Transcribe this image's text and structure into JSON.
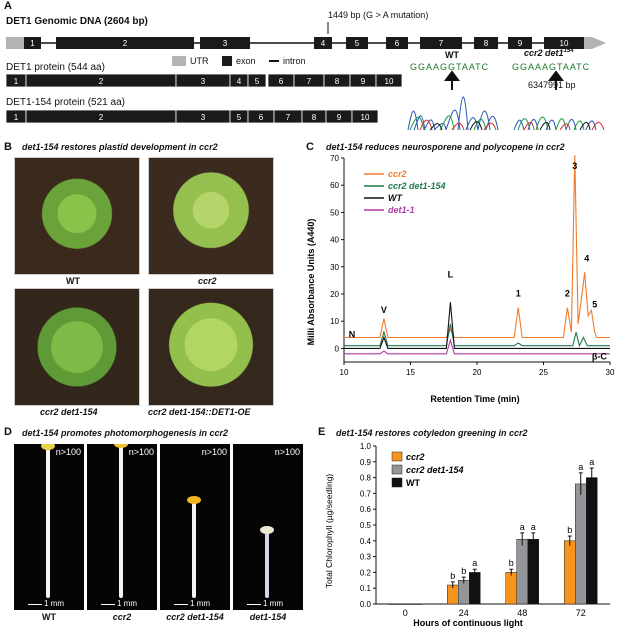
{
  "panels": {
    "a": {
      "letter": "A",
      "genomic_title": "DET1 Genomic DNA (2604 bp)",
      "mutation_label": "1449 bp (G > A mutation)",
      "legend": {
        "utr": "UTR",
        "exon": "exon",
        "intron": "intron"
      },
      "genomic_exons": [
        "1",
        "2",
        "3",
        "4",
        "5",
        "6",
        "7",
        "8",
        "9",
        "10"
      ],
      "protein_title": "DET1 protein (544 aa)",
      "protein_exons": [
        "1",
        "2",
        "3",
        "4",
        "5",
        "6",
        "7",
        "8",
        "9",
        "10"
      ],
      "mutant_title": "DET1-154 protein (521 aa)",
      "mutant_exons": [
        "1",
        "2",
        "3",
        "5",
        "6",
        "7",
        "8",
        "9",
        "10"
      ],
      "wt_label": "WT",
      "wt_seq": "GGAAGGTAATC",
      "mut_label": "ccr2 det1",
      "mut_sup": "154",
      "mut_seq": "GGAAAGTAATC",
      "position_label": "6347991 bp",
      "colors": {
        "exon": "#1a1a1a",
        "utr": "#b3b3b3"
      }
    },
    "b": {
      "letter": "B",
      "title": "det1-154 restores plastid development in ccr2",
      "photos": [
        "WT",
        "ccr2",
        "ccr2 det1-154",
        "ccr2 det1-154::DET1-OE"
      ]
    },
    "c": {
      "letter": "C",
      "title": "det1-154 reduces neurosporene and polycopene in ccr2"
    },
    "d": {
      "letter": "D",
      "title": "det1-154 promotes photomorphogenesis in ccr2",
      "photos": [
        {
          "label": "WT",
          "count": "n>100",
          "scale": "1 mm"
        },
        {
          "label": "ccr2",
          "count": "n>100",
          "scale": "1 mm"
        },
        {
          "label": "ccr2 det1-154",
          "count": "n>100",
          "scale": "1 mm"
        },
        {
          "label": "det1-154",
          "count": "n>100",
          "scale": "1 mm"
        }
      ]
    },
    "e": {
      "letter": "E",
      "title": "det1-154 restores cotyledon greening in ccr2"
    }
  },
  "chart_data": [
    {
      "id": "C",
      "type": "line",
      "title": "det1-154 reduces neurosporene and polycopene in ccr2",
      "xlabel": "Retention Time (min)",
      "ylabel": "Milli Absorbance Units (A440)",
      "xlim": [
        10,
        30
      ],
      "ylim": [
        -5,
        70
      ],
      "xticks": [
        10,
        15,
        20,
        25,
        30
      ],
      "yticks": [
        0,
        10,
        20,
        30,
        40,
        50,
        60,
        70
      ],
      "legend_position": "top-left",
      "series": [
        {
          "name": "ccr2",
          "color": "#f07b2c",
          "offset": 4,
          "points": [
            [
              10,
              0
            ],
            [
              12.7,
              0
            ],
            [
              13,
              7
            ],
            [
              13.3,
              0
            ],
            [
              17.7,
              0
            ],
            [
              18,
              3
            ],
            [
              18.3,
              0
            ],
            [
              22.8,
              0
            ],
            [
              23.1,
              11
            ],
            [
              23.4,
              0
            ],
            [
              26.5,
              0
            ],
            [
              26.8,
              11
            ],
            [
              27.1,
              2
            ],
            [
              27.35,
              67
            ],
            [
              27.6,
              5
            ],
            [
              27.9,
              16
            ],
            [
              28.1,
              24
            ],
            [
              28.35,
              8
            ],
            [
              28.6,
              10
            ],
            [
              28.85,
              2
            ],
            [
              29,
              0
            ],
            [
              30,
              0
            ]
          ]
        },
        {
          "name": "ccr2 det1-154",
          "color": "#1f7a4c",
          "offset": 1,
          "points": [
            [
              10,
              0
            ],
            [
              12.7,
              0
            ],
            [
              13,
              5
            ],
            [
              13.3,
              0
            ],
            [
              17.7,
              0
            ],
            [
              18,
              8
            ],
            [
              18.3,
              0
            ],
            [
              22.8,
              0
            ],
            [
              23.1,
              1
            ],
            [
              23.4,
              0
            ],
            [
              27.2,
              0
            ],
            [
              27.45,
              5
            ],
            [
              27.7,
              0
            ],
            [
              28.0,
              3
            ],
            [
              28.3,
              0
            ],
            [
              30,
              0
            ]
          ]
        },
        {
          "name": "WT",
          "color": "#111111",
          "offset": 0,
          "points": [
            [
              10,
              0
            ],
            [
              12.7,
              0
            ],
            [
              13,
              4
            ],
            [
              13.3,
              0
            ],
            [
              17.7,
              0
            ],
            [
              18,
              17
            ],
            [
              18.3,
              0
            ],
            [
              30,
              0
            ]
          ]
        },
        {
          "name": "det1-1",
          "color": "#b03aa8",
          "offset": -2,
          "points": [
            [
              10,
              0
            ],
            [
              12.7,
              0
            ],
            [
              13,
              1
            ],
            [
              13.3,
              0
            ],
            [
              17.7,
              0
            ],
            [
              18,
              5
            ],
            [
              18.3,
              0
            ],
            [
              30,
              0
            ]
          ]
        }
      ],
      "annotations": [
        {
          "text": "N",
          "x": 10.6,
          "y": 4
        },
        {
          "text": "V",
          "x": 13,
          "y": 13
        },
        {
          "text": "L",
          "x": 18,
          "y": 26
        },
        {
          "text": "1",
          "x": 23.1,
          "y": 19
        },
        {
          "text": "2",
          "x": 26.8,
          "y": 19
        },
        {
          "text": "3",
          "x": 27.35,
          "y": 66
        },
        {
          "text": "4",
          "x": 28.25,
          "y": 32
        },
        {
          "text": "5",
          "x": 28.85,
          "y": 15
        },
        {
          "text": "β-C",
          "x": 29.2,
          "y": -4
        }
      ]
    },
    {
      "id": "E",
      "type": "bar",
      "title": "det1-154 restores cotyledon greening in ccr2",
      "xlabel": "Hours of continuous light",
      "ylabel": "Total Chlorophyll (µg/seedling)",
      "categories": [
        "0",
        "24",
        "48",
        "72"
      ],
      "ylim": [
        0,
        1.0
      ],
      "yticks": [
        "0.0",
        "0.1",
        "0.2",
        "0.3",
        "0.4",
        "0.5",
        "0.6",
        "0.7",
        "0.8",
        "0.9",
        "1.0"
      ],
      "legend_position": "top-left",
      "series": [
        {
          "name": "ccr2",
          "color": "#f7941d",
          "values": [
            0,
            0.12,
            0.2,
            0.4
          ],
          "errors": [
            0,
            0.02,
            0.02,
            0.03
          ],
          "letters": [
            "",
            "b",
            "b",
            "b"
          ]
        },
        {
          "name": "ccr2 det1-154",
          "color": "#939598",
          "values": [
            0,
            0.15,
            0.41,
            0.76
          ],
          "errors": [
            0,
            0.02,
            0.04,
            0.07
          ],
          "letters": [
            "",
            "b",
            "a",
            "a"
          ]
        },
        {
          "name": "WT",
          "color": "#111111",
          "values": [
            0,
            0.2,
            0.41,
            0.8
          ],
          "errors": [
            0,
            0.02,
            0.04,
            0.06
          ],
          "letters": [
            "",
            "a",
            "a",
            "a"
          ]
        }
      ]
    }
  ]
}
